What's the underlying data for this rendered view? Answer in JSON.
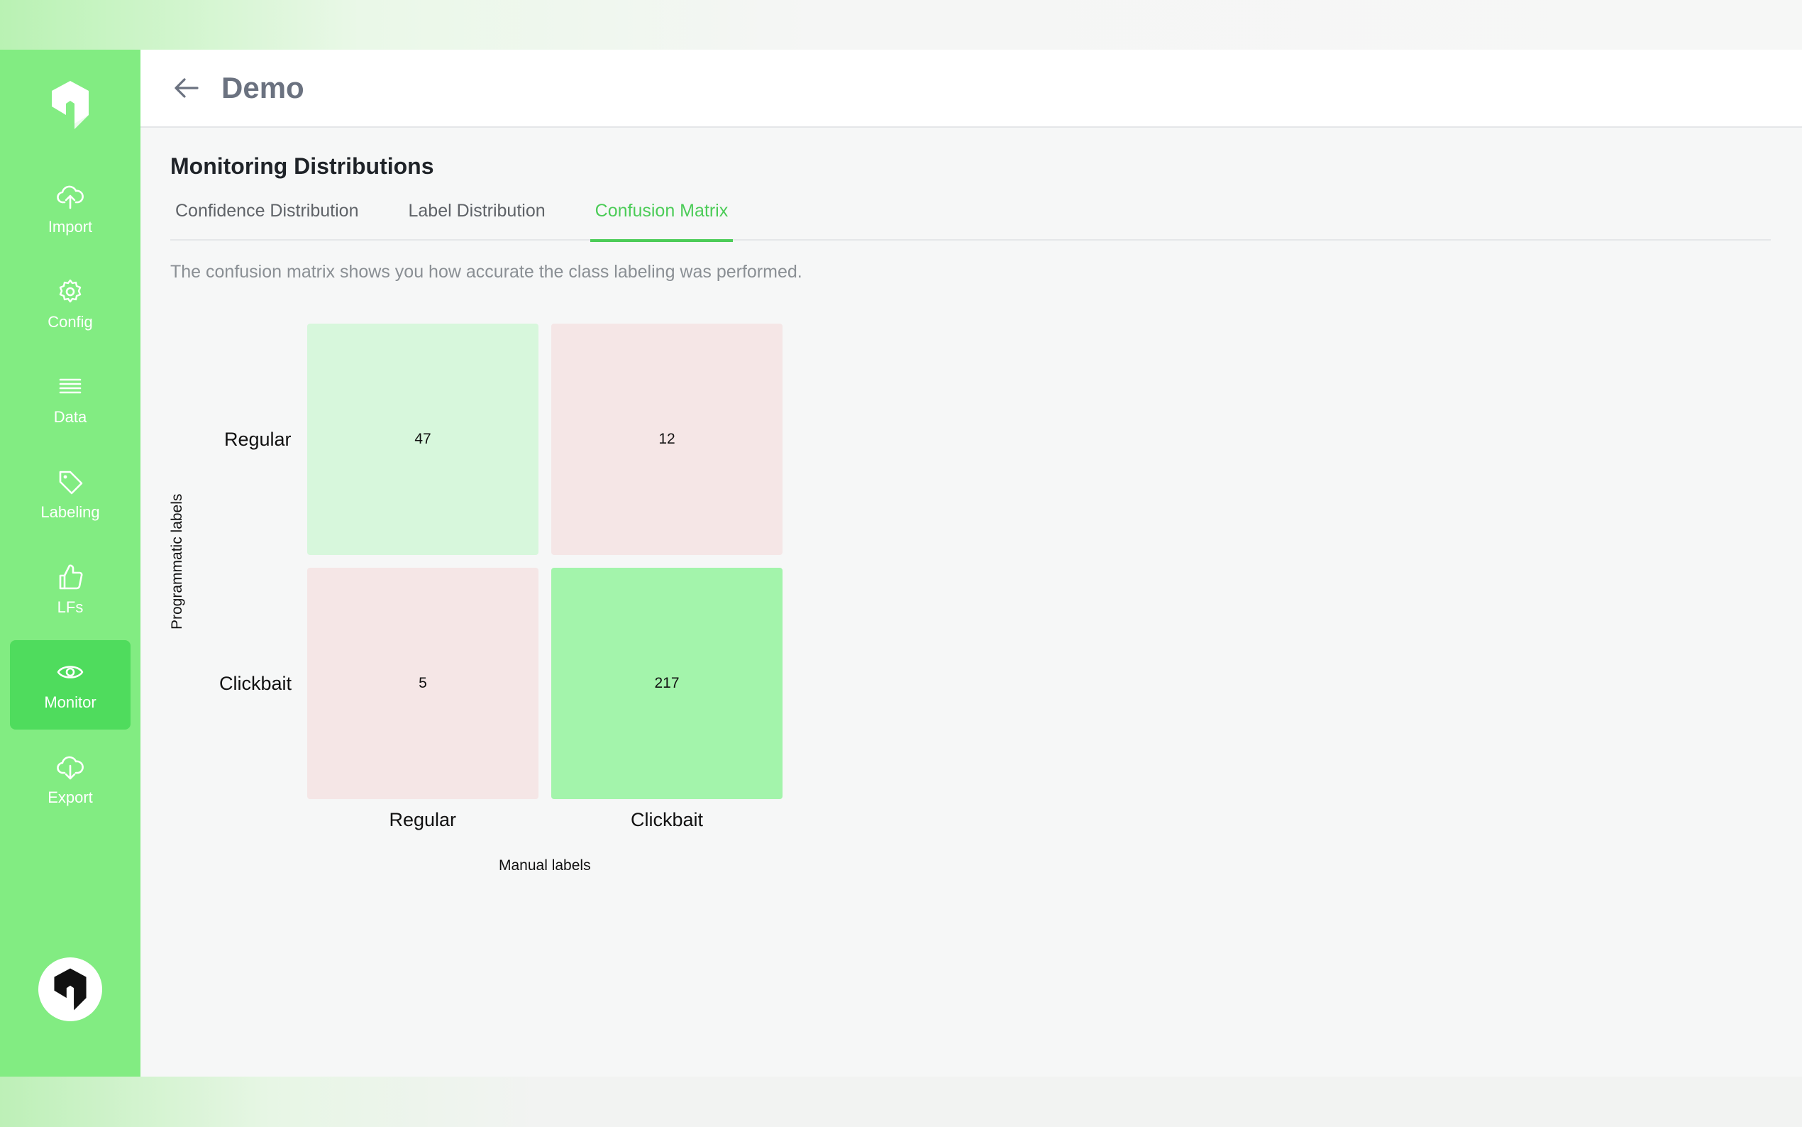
{
  "header": {
    "title": "Demo"
  },
  "sidebar": {
    "items": [
      {
        "label": "Import",
        "icon": "cloud-upload-icon"
      },
      {
        "label": "Config",
        "icon": "gear-icon"
      },
      {
        "label": "Data",
        "icon": "list-icon"
      },
      {
        "label": "Labeling",
        "icon": "tag-icon"
      },
      {
        "label": "LFs",
        "icon": "thumbs-up-icon"
      },
      {
        "label": "Monitor",
        "icon": "eye-icon",
        "active": true
      },
      {
        "label": "Export",
        "icon": "cloud-download-icon"
      }
    ]
  },
  "main": {
    "section_title": "Monitoring Distributions",
    "tabs": [
      {
        "label": "Confidence Distribution"
      },
      {
        "label": "Label Distribution"
      },
      {
        "label": "Confusion Matrix",
        "active": true
      }
    ],
    "description": "The confusion matrix shows you how accurate the class labeling was performed."
  },
  "chart_data": {
    "type": "heatmap",
    "xlabel": "Manual labels",
    "ylabel": "Programmatic labels",
    "x_categories": [
      "Regular",
      "Clickbait"
    ],
    "y_categories": [
      "Regular",
      "Clickbait"
    ],
    "values": [
      [
        47,
        12
      ],
      [
        5,
        217
      ]
    ],
    "colors": {
      "correct_low": "#e6f8e9",
      "correct_high": "#a3f4ab",
      "incorrect": "#f5e6e6"
    }
  },
  "colors": {
    "sidebar": "#82ec82",
    "sidebar_active": "#4fdc5d",
    "accent": "#4ccc58"
  }
}
